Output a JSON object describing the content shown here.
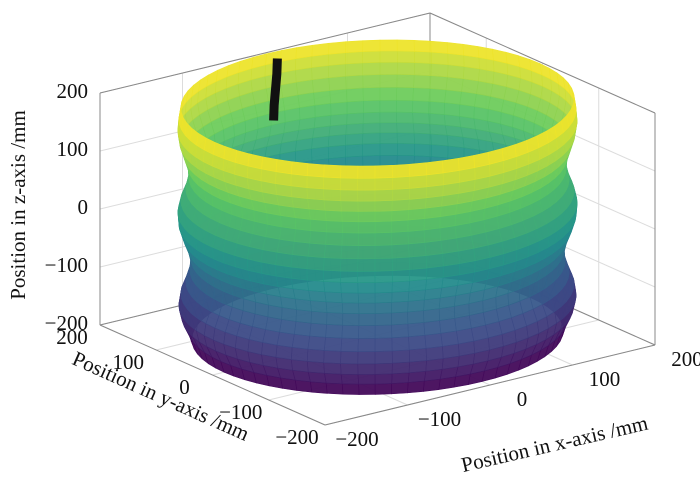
{
  "chart_data": {
    "type": "surface3d",
    "xlabel": "Position in x-axis /mm",
    "ylabel": "Position in y-axis /mm",
    "zlabel": "Position in z-axis /mm",
    "xlim": [
      -200,
      200
    ],
    "ylim": [
      -200,
      200
    ],
    "zlim": [
      -200,
      200
    ],
    "xticks": [
      {
        "value": -200,
        "label": "−200"
      },
      {
        "value": -100,
        "label": "−100"
      },
      0,
      100,
      200
    ],
    "yticks": [
      {
        "value": -200,
        "label": "−200"
      },
      {
        "value": -100,
        "label": "−100"
      },
      0,
      100,
      200
    ],
    "zticks": [
      {
        "value": -200,
        "label": "−200"
      },
      {
        "value": -100,
        "label": "−100"
      },
      0,
      100,
      200
    ],
    "grid": true,
    "colormap": [
      "#440154",
      "#3b528b",
      "#21918c",
      "#5ec962",
      "#fde725"
    ],
    "surface": {
      "z": [
        -200,
        -180,
        -160,
        -140,
        -120,
        -100,
        -80,
        -60,
        -40,
        -20,
        0,
        20,
        40,
        60,
        80,
        100,
        120,
        140,
        160,
        180,
        200
      ],
      "radius": [
        186,
        190,
        196,
        199,
        197,
        192,
        188,
        187,
        190,
        195,
        199,
        200,
        197,
        192,
        189,
        190,
        194,
        198,
        200,
        199,
        197
      ]
    },
    "path": {
      "x": [
        -10,
        -8,
        -5,
        -2,
        0
      ],
      "y": [
        170,
        172,
        174,
        176,
        178
      ],
      "z": [
        100,
        125,
        150,
        175,
        200
      ],
      "color": "#111111"
    }
  }
}
